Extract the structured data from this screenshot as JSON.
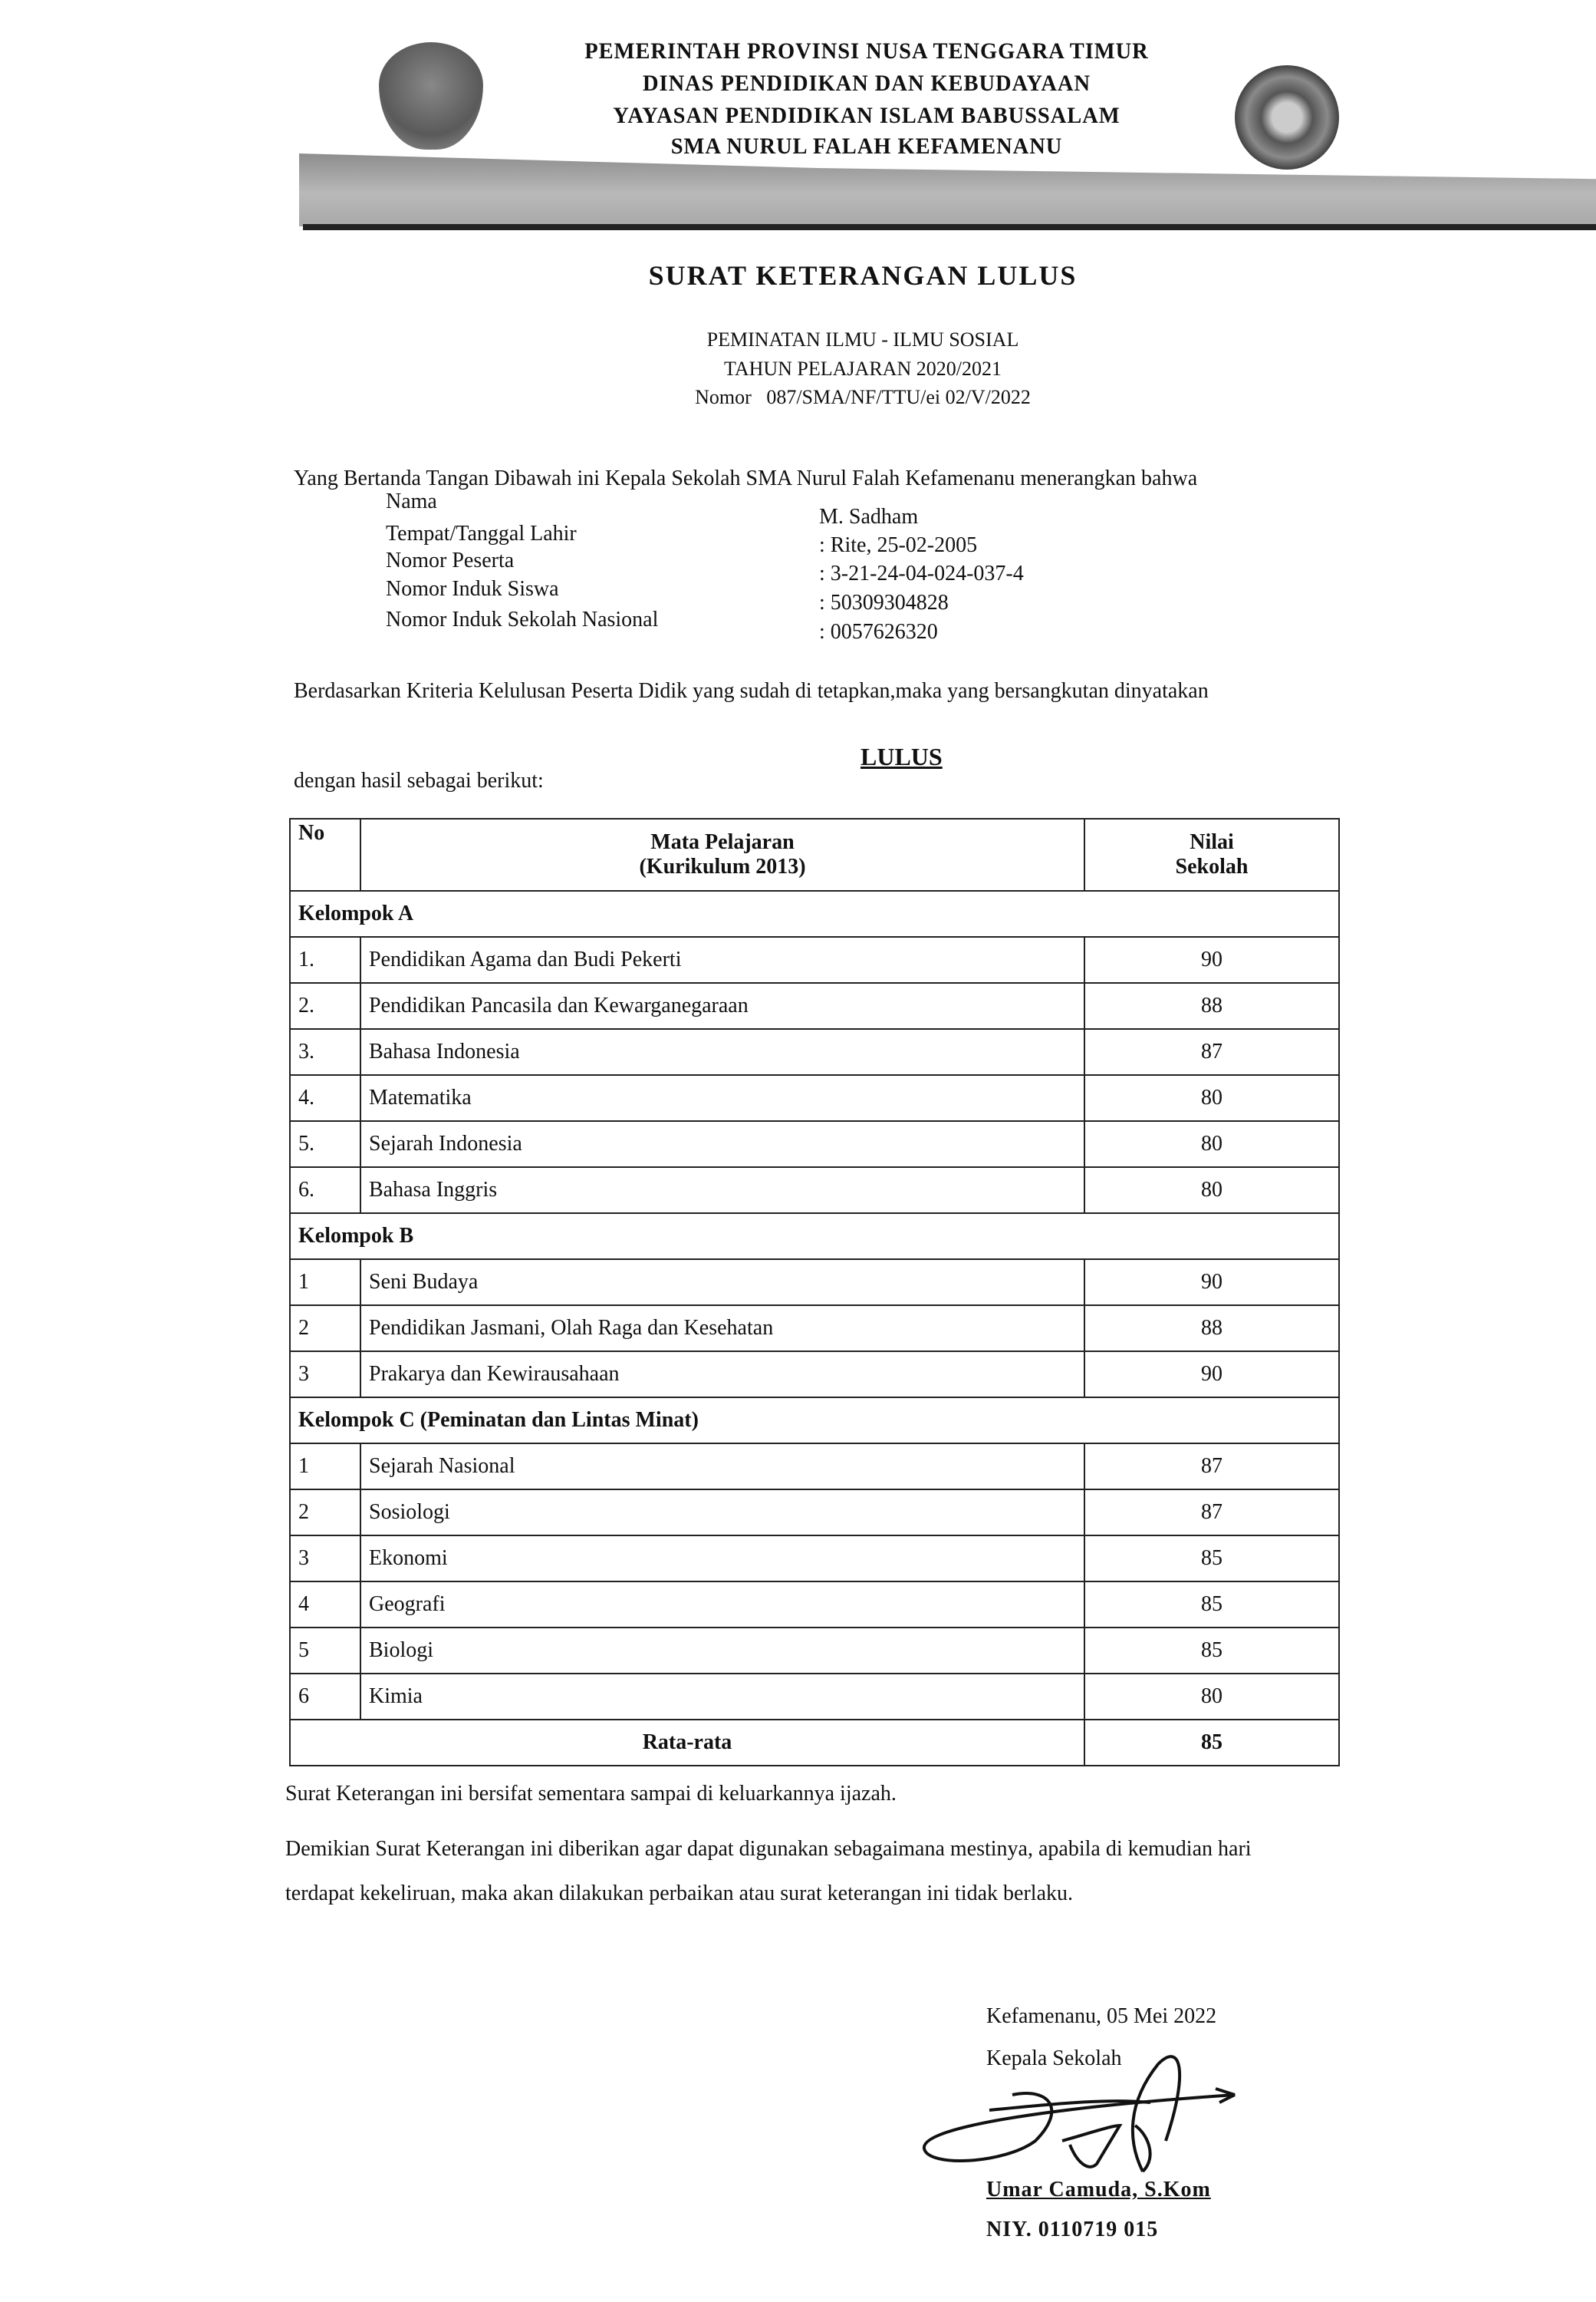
{
  "letterhead": {
    "lines": [
      "PEMERINTAH PROVINSI NUSA TENGGARA TIMUR",
      "DINAS PENDIDIKAN DAN KEBUDAYAAN",
      "YAYASAN PENDIDIKAN ISLAM BABUSSALAM",
      "SMA NURUL FALAH KEFAMENANU"
    ],
    "left_logo": "provincial-emblem",
    "right_logo": "school-seal"
  },
  "title": "SURAT KETERANGAN LULUS",
  "subtitle": {
    "line1": "PEMINATAN ILMU - ILMU SOSIAL",
    "line2": "TAHUN PELAJARAN 2020/2021",
    "nomor": "Nomor   087/SMA/NF/TTU/ei 02/V/2022"
  },
  "intro": "Yang Bertanda Tangan Dibawah ini Kepala Sekolah SMA Nurul Falah Kefamenanu menerangkan bahwa",
  "fields": [
    {
      "label": "Nama",
      "value": "M. Sadham"
    },
    {
      "label": "Tempat/Tanggal Lahir",
      "value": ": Rite, 25-02-2005"
    },
    {
      "label": "Nomor Peserta",
      "value": ": 3-21-24-04-024-037-4"
    },
    {
      "label": "Nomor Induk Siswa",
      "value": ": 50309304828"
    },
    {
      "label": "Nomor Induk Sekolah Nasional",
      "value": ": 0057626320"
    }
  ],
  "criteria": "Berdasarkan Kriteria Kelulusan Peserta Didik yang sudah di tetapkan,maka yang bersangkutan dinyatakan",
  "status": "LULUS",
  "results_intro": "dengan hasil sebagai berikut:",
  "table": {
    "headers": {
      "no": "No",
      "subject": "Mata Pelajaran",
      "subject_sub": "(Kurikulum 2013)",
      "score": "Nilai",
      "score_sub": "Sekolah"
    },
    "groups": [
      {
        "name": "Kelompok A",
        "rows": [
          {
            "no": "1.",
            "subject": "Pendidikan Agama dan Budi Pekerti",
            "score": "90"
          },
          {
            "no": "2.",
            "subject": "Pendidikan Pancasila dan Kewarganegaraan",
            "score": "88"
          },
          {
            "no": "3.",
            "subject": "Bahasa Indonesia",
            "score": "87"
          },
          {
            "no": "4.",
            "subject": "Matematika",
            "score": "80"
          },
          {
            "no": "5.",
            "subject": "Sejarah Indonesia",
            "score": "80"
          },
          {
            "no": "6.",
            "subject": "Bahasa Inggris",
            "score": "80"
          }
        ]
      },
      {
        "name": "Kelompok B",
        "rows": [
          {
            "no": "1",
            "subject": "Seni Budaya",
            "score": "90"
          },
          {
            "no": "2",
            "subject": "Pendidikan Jasmani, Olah Raga dan Kesehatan",
            "score": "88"
          },
          {
            "no": "3",
            "subject": "Prakarya dan Kewirausahaan",
            "score": "90"
          }
        ]
      },
      {
        "name": "Kelompok C (Peminatan dan Lintas Minat)",
        "rows": [
          {
            "no": "1",
            "subject": "Sejarah Nasional",
            "score": "87"
          },
          {
            "no": "2",
            "subject": "Sosiologi",
            "score": "87"
          },
          {
            "no": "3",
            "subject": "Ekonomi",
            "score": "85"
          },
          {
            "no": "4",
            "subject": "Geografi",
            "score": "85"
          },
          {
            "no": "5",
            "subject": "Biologi",
            "score": "85"
          },
          {
            "no": "6",
            "subject": "Kimia",
            "score": "80"
          }
        ]
      }
    ],
    "average_label": "Rata-rata",
    "average": "85"
  },
  "footer": {
    "line1": "Surat Keterangan ini bersifat sementara sampai di keluarkannya ijazah.",
    "line2": "Demikian Surat Keterangan ini diberikan agar dapat digunakan sebagaimana mestinya, apabila di kemudian hari",
    "line3": "terdapat kekeliruan, maka akan dilakukan perbaikan atau surat keterangan ini tidak berlaku."
  },
  "signature": {
    "place_date": "Kefamenanu, 05 Mei 2022",
    "role": "Kepala Sekolah",
    "name": "Umar Camuda, S.Kom",
    "niy": "NIY. 0110719 015"
  }
}
